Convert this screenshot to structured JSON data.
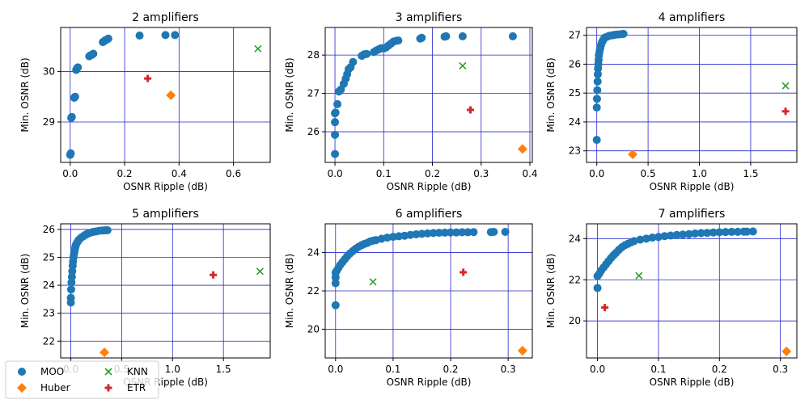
{
  "chart_data": [
    {
      "type": "scatter",
      "title": "2 amplifiers",
      "xlabel": "OSNR Ripple (dB)",
      "ylabel": "Min. OSNR (dB)",
      "xlim": [
        -0.035,
        0.735
      ],
      "ylim": [
        28.2,
        30.87
      ],
      "xticks": [
        0.0,
        0.2,
        0.4,
        0.6
      ],
      "xtick_labels": [
        "0.0",
        "0.2",
        "0.4",
        "0.6"
      ],
      "yticks": [
        29,
        30
      ],
      "ytick_labels": [
        "29",
        "30"
      ],
      "grid": true,
      "series": [
        {
          "name": "MOO",
          "marker": "circle",
          "color": "#1f77b4",
          "x": [
            0.0,
            0.002,
            0.004,
            0.006,
            0.015,
            0.018,
            0.022,
            0.025,
            0.028,
            0.07,
            0.075,
            0.08,
            0.085,
            0.12,
            0.125,
            0.13,
            0.135,
            0.14,
            0.255,
            0.35,
            0.385
          ],
          "y": [
            28.35,
            28.38,
            29.08,
            29.1,
            29.48,
            29.5,
            30.03,
            30.06,
            30.08,
            30.3,
            30.32,
            30.33,
            30.35,
            30.58,
            30.6,
            30.62,
            30.63,
            30.65,
            30.71,
            30.72,
            30.72
          ]
        },
        {
          "name": "Huber",
          "marker": "diamond",
          "color": "#ff7f0e",
          "x": [
            0.37
          ],
          "y": [
            29.53
          ]
        },
        {
          "name": "KNN",
          "marker": "x",
          "color": "#2ca02c",
          "x": [
            0.69
          ],
          "y": [
            30.45
          ]
        },
        {
          "name": "ETR",
          "marker": "plus",
          "color": "#d62728",
          "x": [
            0.285
          ],
          "y": [
            29.86
          ]
        }
      ]
    },
    {
      "type": "scatter",
      "title": "3 amplifiers",
      "xlabel": "OSNR Ripple (dB)",
      "ylabel": "Min. OSNR (dB)",
      "xlim": [
        -0.02,
        0.405
      ],
      "ylim": [
        25.2,
        28.72
      ],
      "xticks": [
        0.0,
        0.1,
        0.2,
        0.3,
        0.4
      ],
      "xtick_labels": [
        "0.0",
        "0.1",
        "0.2",
        "0.3",
        "0.4"
      ],
      "yticks": [
        26,
        27,
        28
      ],
      "ytick_labels": [
        "26",
        "27",
        "28"
      ],
      "grid": true,
      "series": [
        {
          "name": "MOO",
          "marker": "circle",
          "color": "#1f77b4",
          "x": [
            0.0,
            0.0,
            0.0,
            0.0,
            0.001,
            0.005,
            0.008,
            0.012,
            0.018,
            0.022,
            0.025,
            0.028,
            0.032,
            0.037,
            0.055,
            0.06,
            0.065,
            0.08,
            0.085,
            0.09,
            0.095,
            0.1,
            0.105,
            0.11,
            0.115,
            0.12,
            0.125,
            0.13,
            0.175,
            0.178,
            0.225,
            0.228,
            0.262,
            0.365
          ],
          "y": [
            25.42,
            25.92,
            26.25,
            26.48,
            26.5,
            26.72,
            27.05,
            27.1,
            27.25,
            27.38,
            27.5,
            27.63,
            27.68,
            27.82,
            27.98,
            28.02,
            28.03,
            28.08,
            28.12,
            28.15,
            28.18,
            28.17,
            28.2,
            28.25,
            28.3,
            28.35,
            28.37,
            28.38,
            28.43,
            28.45,
            28.48,
            28.49,
            28.49,
            28.49
          ]
        },
        {
          "name": "Huber",
          "marker": "diamond",
          "color": "#ff7f0e",
          "x": [
            0.385
          ],
          "y": [
            25.55
          ]
        },
        {
          "name": "KNN",
          "marker": "x",
          "color": "#2ca02c",
          "x": [
            0.262
          ],
          "y": [
            27.72
          ]
        },
        {
          "name": "ETR",
          "marker": "plus",
          "color": "#d62728",
          "x": [
            0.278
          ],
          "y": [
            26.57
          ]
        }
      ]
    },
    {
      "type": "scatter",
      "title": "4 amplifiers",
      "xlabel": "OSNR Ripple (dB)",
      "ylabel": "Min. OSNR (dB)",
      "xlim": [
        -0.1,
        1.95
      ],
      "ylim": [
        22.6,
        27.27
      ],
      "xticks": [
        0.0,
        0.5,
        1.0,
        1.5
      ],
      "xtick_labels": [
        "0.0",
        "0.5",
        "1.0",
        "1.5"
      ],
      "yticks": [
        23,
        24,
        25,
        26,
        27
      ],
      "ytick_labels": [
        "23",
        "24",
        "25",
        "26",
        "27"
      ],
      "grid": true,
      "series": [
        {
          "name": "MOO",
          "marker": "circle",
          "color": "#1f77b4",
          "x": [
            0.0,
            0.0,
            0.002,
            0.005,
            0.008,
            0.01,
            0.012,
            0.015,
            0.018,
            0.02,
            0.025,
            0.03,
            0.035,
            0.04,
            0.05,
            0.06,
            0.07,
            0.08,
            0.1,
            0.12,
            0.15,
            0.18,
            0.21,
            0.24,
            0.26
          ],
          "y": [
            23.38,
            24.5,
            24.8,
            25.1,
            25.4,
            25.65,
            25.85,
            26.0,
            26.15,
            26.3,
            26.4,
            26.5,
            26.58,
            26.65,
            26.75,
            26.82,
            26.88,
            26.92,
            26.95,
            26.98,
            27.0,
            27.02,
            27.03,
            27.04,
            27.05
          ]
        },
        {
          "name": "Huber",
          "marker": "diamond",
          "color": "#ff7f0e",
          "x": [
            0.35
          ],
          "y": [
            22.88
          ]
        },
        {
          "name": "KNN",
          "marker": "x",
          "color": "#2ca02c",
          "x": [
            1.84
          ],
          "y": [
            25.25
          ]
        },
        {
          "name": "ETR",
          "marker": "plus",
          "color": "#d62728",
          "x": [
            1.84
          ],
          "y": [
            24.37
          ]
        }
      ]
    },
    {
      "type": "scatter",
      "title": "5 amplifiers",
      "xlabel": "OSNR Ripple (dB)",
      "ylabel": "Min. OSNR (dB)",
      "xlim": [
        -0.1,
        1.96
      ],
      "ylim": [
        21.4,
        26.2
      ],
      "xticks": [
        0.0,
        0.5,
        1.0,
        1.5
      ],
      "xtick_labels": [
        "0.0",
        "0.5",
        "1.0",
        "1.5"
      ],
      "yticks": [
        22,
        23,
        24,
        25,
        26
      ],
      "ytick_labels": [
        "22",
        "23",
        "24",
        "25",
        "26"
      ],
      "grid": true,
      "series": [
        {
          "name": "MOO",
          "marker": "circle",
          "color": "#1f77b4",
          "x": [
            0.0,
            0.0,
            0.003,
            0.006,
            0.01,
            0.014,
            0.018,
            0.022,
            0.026,
            0.03,
            0.035,
            0.04,
            0.045,
            0.05,
            0.06,
            0.07,
            0.08,
            0.1,
            0.12,
            0.14,
            0.16,
            0.19,
            0.22,
            0.25,
            0.28,
            0.31,
            0.34,
            0.36
          ],
          "y": [
            23.38,
            23.55,
            23.85,
            24.1,
            24.3,
            24.5,
            24.7,
            24.85,
            25.0,
            25.1,
            25.2,
            25.3,
            25.38,
            25.45,
            25.52,
            25.58,
            25.63,
            25.7,
            25.75,
            25.8,
            25.84,
            25.88,
            25.91,
            25.93,
            25.95,
            25.96,
            25.97,
            25.97
          ]
        },
        {
          "name": "Huber",
          "marker": "diamond",
          "color": "#ff7f0e",
          "x": [
            0.33
          ],
          "y": [
            21.6
          ]
        },
        {
          "name": "KNN",
          "marker": "x",
          "color": "#2ca02c",
          "x": [
            1.86
          ],
          "y": [
            24.5
          ]
        },
        {
          "name": "ETR",
          "marker": "plus",
          "color": "#d62728",
          "x": [
            1.4
          ],
          "y": [
            24.37
          ]
        }
      ]
    },
    {
      "type": "scatter",
      "title": "6 amplifiers",
      "xlabel": "OSNR Ripple (dB)",
      "ylabel": "Min. OSNR (dB)",
      "xlim": [
        -0.018,
        0.342
      ],
      "ylim": [
        18.5,
        25.5
      ],
      "xticks": [
        0.0,
        0.1,
        0.2,
        0.3
      ],
      "xtick_labels": [
        "0.0",
        "0.1",
        "0.2",
        "0.3"
      ],
      "yticks": [
        20,
        22,
        24
      ],
      "ytick_labels": [
        "20",
        "22",
        "24"
      ],
      "grid": true,
      "series": [
        {
          "name": "MOO",
          "marker": "circle",
          "color": "#1f77b4",
          "x": [
            0.0,
            0.0,
            0.0,
            0.0,
            0.002,
            0.005,
            0.008,
            0.012,
            0.016,
            0.02,
            0.025,
            0.03,
            0.035,
            0.04,
            0.045,
            0.05,
            0.055,
            0.06,
            0.065,
            0.07,
            0.08,
            0.09,
            0.1,
            0.11,
            0.12,
            0.13,
            0.14,
            0.15,
            0.16,
            0.17,
            0.18,
            0.19,
            0.2,
            0.21,
            0.22,
            0.23,
            0.24,
            0.27,
            0.275,
            0.295
          ],
          "y": [
            21.25,
            22.4,
            22.7,
            22.95,
            23.05,
            23.2,
            23.35,
            23.5,
            23.65,
            23.8,
            23.95,
            24.08,
            24.2,
            24.3,
            24.38,
            24.45,
            24.5,
            24.58,
            24.62,
            24.65,
            24.72,
            24.78,
            24.82,
            24.85,
            24.88,
            24.92,
            24.95,
            24.98,
            25.0,
            25.02,
            25.03,
            25.04,
            25.05,
            25.05,
            25.06,
            25.06,
            25.07,
            25.07,
            25.08,
            25.08
          ]
        },
        {
          "name": "Huber",
          "marker": "diamond",
          "color": "#ff7f0e",
          "x": [
            0.325
          ],
          "y": [
            18.88
          ]
        },
        {
          "name": "KNN",
          "marker": "x",
          "color": "#2ca02c",
          "x": [
            0.065
          ],
          "y": [
            22.47
          ]
        },
        {
          "name": "ETR",
          "marker": "plus",
          "color": "#d62728",
          "x": [
            0.222
          ],
          "y": [
            22.97
          ]
        }
      ]
    },
    {
      "type": "scatter",
      "title": "7 amplifiers",
      "xlabel": "OSNR Ripple (dB)",
      "ylabel": "Min. OSNR (dB)",
      "xlim": [
        -0.018,
        0.327
      ],
      "ylim": [
        18.2,
        24.72
      ],
      "xticks": [
        0.0,
        0.1,
        0.2,
        0.3
      ],
      "xtick_labels": [
        "0.0",
        "0.1",
        "0.2",
        "0.3"
      ],
      "yticks": [
        20,
        22,
        24
      ],
      "ytick_labels": [
        "20",
        "22",
        "24"
      ],
      "grid": true,
      "series": [
        {
          "name": "MOO",
          "marker": "circle",
          "color": "#1f77b4",
          "x": [
            0.0,
            0.0,
            0.003,
            0.006,
            0.01,
            0.014,
            0.018,
            0.022,
            0.026,
            0.03,
            0.035,
            0.04,
            0.045,
            0.05,
            0.055,
            0.06,
            0.07,
            0.08,
            0.09,
            0.1,
            0.11,
            0.12,
            0.13,
            0.14,
            0.15,
            0.16,
            0.17,
            0.18,
            0.19,
            0.2,
            0.21,
            0.22,
            0.23,
            0.24,
            0.245,
            0.255
          ],
          "y": [
            21.6,
            22.18,
            22.3,
            22.45,
            22.6,
            22.75,
            22.9,
            23.05,
            23.18,
            23.3,
            23.45,
            23.58,
            23.68,
            23.75,
            23.82,
            23.88,
            23.95,
            24.0,
            24.05,
            24.08,
            24.12,
            24.15,
            24.18,
            24.2,
            24.22,
            24.25,
            24.27,
            24.28,
            24.3,
            24.31,
            24.32,
            24.33,
            24.33,
            24.34,
            24.34,
            24.35
          ]
        },
        {
          "name": "Huber",
          "marker": "diamond",
          "color": "#ff7f0e",
          "x": [
            0.31
          ],
          "y": [
            18.52
          ]
        },
        {
          "name": "KNN",
          "marker": "x",
          "color": "#2ca02c",
          "x": [
            0.068
          ],
          "y": [
            22.2
          ]
        },
        {
          "name": "ETR",
          "marker": "plus",
          "color": "#d62728",
          "x": [
            0.012
          ],
          "y": [
            20.65
          ]
        }
      ]
    }
  ],
  "legend": {
    "placement": "bottom-left",
    "entries": [
      {
        "label": "MOO",
        "marker": "circle",
        "color": "#1f77b4"
      },
      {
        "label": "KNN",
        "marker": "x",
        "color": "#2ca02c"
      },
      {
        "label": "Huber",
        "marker": "diamond",
        "color": "#ff7f0e"
      },
      {
        "label": "ETR",
        "marker": "plus",
        "color": "#d62728"
      }
    ]
  },
  "colors": {
    "grid": "#2727cc",
    "axis": "#000000"
  }
}
